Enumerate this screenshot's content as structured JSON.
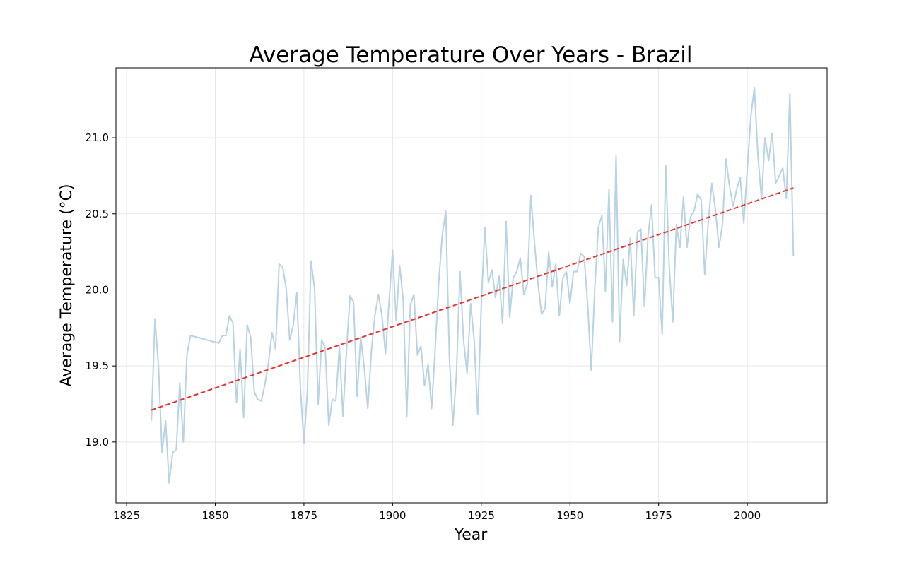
{
  "chart_data": {
    "type": "line",
    "title": "Average Temperature Over Years - Brazil",
    "xlabel": "Year",
    "ylabel": "Average Temperature (°C)",
    "xlim": [
      1822,
      2022.5
    ],
    "ylim": [
      18.6,
      21.46
    ],
    "grid": true,
    "legend": "none",
    "x_ticks": [
      1825,
      1850,
      1875,
      1900,
      1925,
      1950,
      1975,
      2000
    ],
    "x_tick_labels": [
      "1825",
      "1850",
      "1875",
      "1900",
      "1925",
      "1950",
      "1975",
      "2000"
    ],
    "y_ticks": [
      19.0,
      19.5,
      20.0,
      20.5,
      21.0
    ],
    "y_tick_labels": [
      "19.0",
      "19.5",
      "20.0",
      "20.5",
      "21.0"
    ],
    "colors": {
      "series": "#b7d3e4",
      "trend": "#e8322f",
      "grid": "#e2e2e2",
      "frame": "#000000"
    },
    "series": [
      {
        "kind": "line",
        "x": [
          1832,
          1833,
          1834,
          1835,
          1836,
          1837,
          1838,
          1839,
          1840,
          1841,
          1842,
          1843,
          1851,
          1852,
          1853,
          1854,
          1855,
          1856,
          1857,
          1858,
          1859,
          1860,
          1861,
          1862,
          1863,
          1864,
          1865,
          1866,
          1867,
          1868,
          1869,
          1870,
          1871,
          1872,
          1873,
          1874,
          1875,
          1876,
          1877,
          1878,
          1879,
          1880,
          1881,
          1882,
          1883,
          1884,
          1885,
          1886,
          1887,
          1888,
          1889,
          1890,
          1891,
          1892,
          1893,
          1894,
          1895,
          1896,
          1897,
          1898,
          1899,
          1900,
          1901,
          1902,
          1903,
          1904,
          1905,
          1906,
          1907,
          1908,
          1909,
          1910,
          1911,
          1912,
          1913,
          1914,
          1915,
          1916,
          1917,
          1918,
          1919,
          1920,
          1921,
          1922,
          1923,
          1924,
          1925,
          1926,
          1927,
          1928,
          1929,
          1930,
          1931,
          1932,
          1933,
          1934,
          1935,
          1936,
          1937,
          1938,
          1939,
          1940,
          1941,
          1942,
          1943,
          1944,
          1945,
          1946,
          1947,
          1948,
          1949,
          1950,
          1951,
          1952,
          1953,
          1954,
          1955,
          1956,
          1957,
          1958,
          1959,
          1960,
          1961,
          1962,
          1963,
          1964,
          1965,
          1966,
          1967,
          1968,
          1969,
          1970,
          1971,
          1972,
          1973,
          1974,
          1975,
          1976,
          1977,
          1978,
          1979,
          1980,
          1981,
          1982,
          1983,
          1984,
          1985,
          1986,
          1987,
          1988,
          1989,
          1990,
          1991,
          1992,
          1993,
          1994,
          1995,
          1996,
          1997,
          1998,
          1999,
          2000,
          2001,
          2002,
          2003,
          2004,
          2005,
          2006,
          2007,
          2008,
          2009,
          2010,
          2011,
          2012,
          2013
        ],
        "values": [
          19.14,
          19.81,
          19.5,
          18.93,
          19.14,
          18.73,
          18.93,
          18.95,
          19.39,
          19.0,
          19.57,
          19.7,
          19.65,
          19.7,
          19.7,
          19.83,
          19.78,
          19.26,
          19.61,
          19.16,
          19.77,
          19.69,
          19.33,
          19.28,
          19.27,
          19.38,
          19.52,
          19.72,
          19.61,
          20.17,
          20.15,
          20.01,
          19.67,
          19.77,
          19.98,
          19.36,
          18.99,
          19.35,
          20.19,
          20.01,
          19.25,
          19.67,
          19.62,
          19.11,
          19.28,
          19.27,
          19.63,
          19.17,
          19.6,
          19.96,
          19.92,
          19.3,
          19.69,
          19.49,
          19.22,
          19.59,
          19.83,
          19.97,
          19.83,
          19.58,
          19.92,
          20.26,
          19.8,
          20.16,
          19.93,
          19.17,
          19.9,
          19.97,
          19.57,
          19.63,
          19.37,
          19.51,
          19.22,
          19.61,
          20.05,
          20.36,
          20.52,
          19.56,
          19.11,
          19.45,
          20.12,
          19.67,
          19.45,
          19.91,
          19.67,
          19.18,
          19.9,
          20.41,
          20.05,
          20.13,
          19.95,
          20.09,
          19.78,
          20.45,
          19.82,
          20.08,
          20.12,
          20.21,
          19.97,
          20.04,
          20.62,
          20.31,
          20.04,
          19.84,
          19.88,
          20.25,
          20.02,
          20.17,
          19.83,
          20.08,
          20.12,
          19.91,
          20.12,
          20.12,
          20.24,
          20.22,
          19.9,
          19.47,
          20.01,
          20.41,
          20.49,
          19.99,
          20.66,
          19.79,
          20.88,
          19.66,
          20.2,
          20.03,
          20.34,
          19.83,
          20.38,
          20.4,
          19.89,
          20.35,
          20.56,
          20.08,
          20.08,
          19.71,
          20.82,
          20.15,
          19.79,
          20.43,
          20.28,
          20.61,
          20.28,
          20.48,
          20.52,
          20.63,
          20.59,
          20.1,
          20.45,
          20.7,
          20.53,
          20.28,
          20.43,
          20.86,
          20.68,
          20.55,
          20.66,
          20.74,
          20.44,
          20.79,
          21.14,
          21.33,
          20.88,
          20.6,
          21.0,
          20.85,
          21.03,
          20.7,
          20.75,
          20.8,
          20.6,
          21.29,
          20.22
        ]
      },
      {
        "kind": "trend",
        "style": "dashed",
        "x": [
          1832,
          2013
        ],
        "values": [
          19.21,
          20.67
        ]
      }
    ]
  }
}
